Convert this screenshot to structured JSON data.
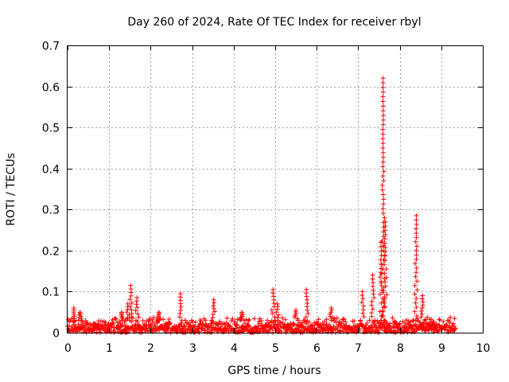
{
  "chart_data": {
    "type": "scatter",
    "title": "Day 260 of 2024, Rate Of TEC Index for receiver rbyl",
    "xlabel": "GPS time / hours",
    "ylabel": "ROTI / TECUs",
    "xlim": [
      0,
      10
    ],
    "ylim": [
      0,
      0.7
    ],
    "xticks": [
      "0",
      "1",
      "2",
      "3",
      "4",
      "5",
      "6",
      "7",
      "8",
      "9",
      "10"
    ],
    "yticks": [
      "0",
      "0.1",
      "0.2",
      "0.3",
      "0.4",
      "0.5",
      "0.6",
      "0.7"
    ],
    "grid": true,
    "marker": "+",
    "series": [
      {
        "name": "ROTI",
        "color": "#ff0000",
        "baseline": {
          "x_start": 0.0,
          "x_end": 9.35,
          "y_typical_min": 0.0,
          "y_typical_max": 0.04
        },
        "peaks": [
          {
            "x": 0.15,
            "y": 0.06
          },
          {
            "x": 0.3,
            "y": 0.05
          },
          {
            "x": 1.3,
            "y": 0.05
          },
          {
            "x": 1.45,
            "y": 0.07
          },
          {
            "x": 1.52,
            "y": 0.115
          },
          {
            "x": 1.67,
            "y": 0.085
          },
          {
            "x": 2.2,
            "y": 0.05
          },
          {
            "x": 2.72,
            "y": 0.095
          },
          {
            "x": 3.52,
            "y": 0.08
          },
          {
            "x": 4.2,
            "y": 0.05
          },
          {
            "x": 4.95,
            "y": 0.105
          },
          {
            "x": 5.05,
            "y": 0.07
          },
          {
            "x": 5.5,
            "y": 0.055
          },
          {
            "x": 5.75,
            "y": 0.105
          },
          {
            "x": 6.35,
            "y": 0.06
          },
          {
            "x": 7.1,
            "y": 0.1
          },
          {
            "x": 7.35,
            "y": 0.14
          },
          {
            "x": 7.55,
            "y": 0.22
          },
          {
            "x": 7.6,
            "y": 0.62
          },
          {
            "x": 7.65,
            "y": 0.27
          },
          {
            "x": 8.4,
            "y": 0.285
          },
          {
            "x": 8.55,
            "y": 0.09
          }
        ]
      }
    ]
  }
}
